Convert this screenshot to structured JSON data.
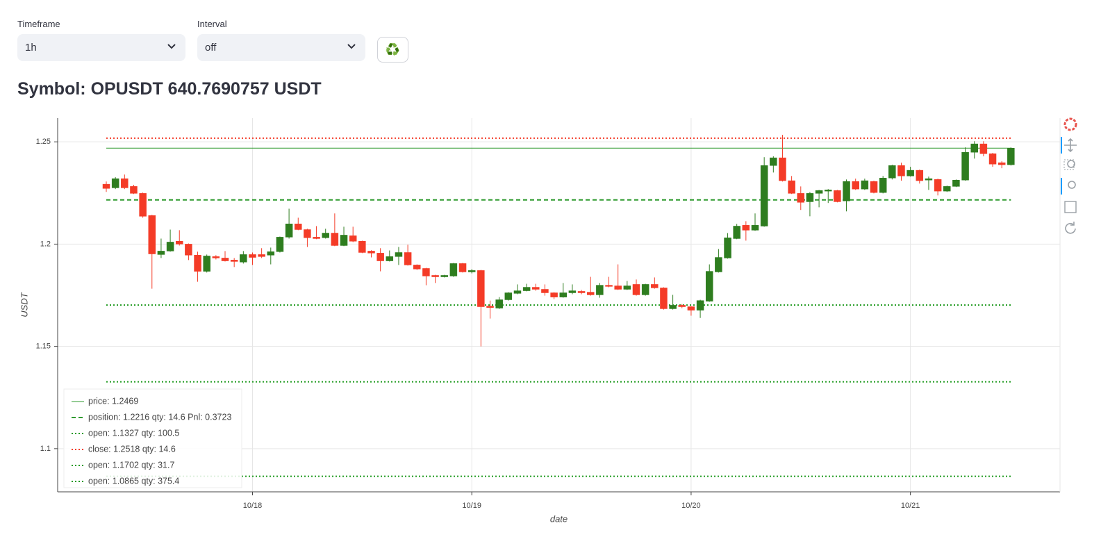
{
  "controls": {
    "timeframe": {
      "label": "Timeframe",
      "value": "1h"
    },
    "interval": {
      "label": "Interval",
      "value": "off"
    },
    "refresh_button": "♻️"
  },
  "heading": "Symbol: OPUSDT 640.7690757 USDT",
  "chart_data": {
    "type": "candlestick",
    "x_label": "date",
    "y_label": "USDT",
    "categories": [
      null,
      null,
      null,
      null,
      null,
      null,
      null,
      null,
      null,
      null,
      null,
      null,
      null,
      null,
      null,
      null,
      "10/18",
      null,
      null,
      null,
      null,
      null,
      null,
      null,
      null,
      null,
      null,
      null,
      null,
      null,
      null,
      null,
      null,
      null,
      null,
      null,
      null,
      null,
      null,
      null,
      "10/19",
      null,
      null,
      null,
      null,
      null,
      null,
      null,
      null,
      null,
      null,
      null,
      null,
      null,
      null,
      null,
      null,
      null,
      null,
      null,
      null,
      null,
      null,
      null,
      "10/20",
      null,
      null,
      null,
      null,
      null,
      null,
      null,
      null,
      null,
      null,
      null,
      null,
      null,
      null,
      null,
      null,
      null,
      null,
      null,
      null,
      null,
      null,
      null,
      "10/21",
      null,
      null,
      null,
      null,
      null,
      null,
      null,
      null,
      null,
      null,
      null
    ],
    "open": [
      1.2293,
      1.2275,
      1.232,
      1.2282,
      1.2248,
      1.214,
      1.1949,
      1.1966,
      1.2014,
      1.2,
      1.1946,
      1.1867,
      1.1939,
      1.1932,
      1.1922,
      1.1912,
      1.1949,
      1.1949,
      1.1946,
      1.1963,
      1.2034,
      1.2099,
      1.2071,
      1.2034,
      1.2031,
      1.2054,
      1.1993,
      1.2041,
      1.2014,
      1.1966,
      1.1956,
      1.1918,
      1.1939,
      1.1959,
      1.1898,
      1.1881,
      1.1847,
      1.184,
      1.1844,
      1.1905,
      1.1864,
      1.1871,
      1.1697,
      1.1687,
      1.1728,
      1.1759,
      1.1772,
      1.1789,
      1.1779,
      1.1762,
      1.1741,
      1.1762,
      1.1769,
      1.1765,
      1.1752,
      1.1799,
      1.1796,
      1.1779,
      1.1803,
      1.1752,
      1.1803,
      1.1786,
      1.1684,
      1.1701,
      1.1694,
      1.1677,
      1.1721,
      1.1864,
      1.1932,
      1.2027,
      1.2092,
      1.2068,
      1.2088,
      1.2384,
      1.2422,
      1.231,
      1.2248,
      1.2207,
      1.2248,
      1.2259,
      1.2262,
      1.2211,
      1.2306,
      1.2269,
      1.2306,
      1.2252,
      1.2323,
      1.2384,
      1.2333,
      1.2361,
      1.2313,
      1.2316,
      1.2259,
      1.2282,
      1.2313,
      1.2449,
      1.249,
      1.2442,
      1.2398,
      1.2388
    ],
    "high": [
      1.2306,
      1.2327,
      1.234,
      1.229,
      1.2252,
      1.2143,
      1.2027,
      1.2071,
      1.2068,
      1.2003,
      1.1963,
      1.1949,
      1.1946,
      1.1966,
      1.1932,
      1.1966,
      1.1959,
      1.198,
      1.1983,
      1.2037,
      1.2173,
      1.2129,
      1.2075,
      1.2088,
      1.2075,
      1.215,
      1.2085,
      1.2085,
      1.2017,
      1.197,
      1.198,
      1.1969,
      1.1986,
      1.1997,
      1.1901,
      1.1884,
      1.185,
      1.185,
      1.1908,
      1.1908,
      1.1878,
      1.1874,
      1.1724,
      1.1741,
      1.1765,
      1.1803,
      1.1806,
      1.1806,
      1.1803,
      1.1765,
      1.181,
      1.1803,
      1.1776,
      1.184,
      1.181,
      1.184,
      1.1901,
      1.182,
      1.1827,
      1.1806,
      1.1837,
      1.1789,
      1.1752,
      1.1707,
      1.1697,
      1.1728,
      1.1901,
      1.1976,
      1.2054,
      1.2099,
      1.2112,
      1.215,
      1.2425,
      1.2429,
      1.2534,
      1.2333,
      1.2282,
      1.2255,
      1.2265,
      1.2269,
      1.2265,
      1.2316,
      1.232,
      1.232,
      1.231,
      1.2333,
      1.2388,
      1.2398,
      1.2378,
      1.2364,
      1.233,
      1.232,
      1.2286,
      1.2316,
      1.2473,
      1.2503,
      1.2503,
      1.2446,
      1.2405,
      1.2473
    ],
    "low": [
      1.2255,
      1.2269,
      1.2269,
      1.2245,
      1.2129,
      1.1782,
      1.1932,
      1.1963,
      1.1993,
      1.1922,
      1.1816,
      1.1861,
      1.1925,
      1.1915,
      1.1888,
      1.1905,
      1.1898,
      1.1932,
      1.1901,
      1.1959,
      1.2027,
      1.2068,
      1.1986,
      1.2024,
      1.2027,
      1.199,
      1.199,
      1.201,
      1.1956,
      1.1935,
      1.1867,
      1.1915,
      1.1898,
      1.1895,
      1.1874,
      1.1799,
      1.181,
      1.1837,
      1.184,
      1.1861,
      1.1857,
      1.15,
      1.1636,
      1.1683,
      1.1724,
      1.1755,
      1.1769,
      1.1772,
      1.1748,
      1.1731,
      1.1738,
      1.1755,
      1.1755,
      1.1748,
      1.1738,
      1.1789,
      1.1776,
      1.1776,
      1.1748,
      1.1748,
      1.1782,
      1.168,
      1.168,
      1.1687,
      1.165,
      1.1639,
      1.1718,
      1.1861,
      1.1929,
      1.2024,
      1.2017,
      1.2065,
      1.2085,
      1.235,
      1.2306,
      1.2245,
      1.2167,
      1.2136,
      1.218,
      1.2201,
      1.2204,
      1.216,
      1.2265,
      1.2265,
      1.2248,
      1.2248,
      1.2316,
      1.231,
      1.233,
      1.2296,
      1.2265,
      1.2238,
      1.2255,
      1.2279,
      1.231,
      1.2418,
      1.2429,
      1.2378,
      1.2371,
      1.2384
    ],
    "close": [
      1.2272,
      1.232,
      1.2275,
      1.2248,
      1.2136,
      1.1952,
      1.1966,
      1.201,
      1.2,
      1.1946,
      1.1867,
      1.1942,
      1.1932,
      1.1918,
      1.1915,
      1.1949,
      1.1935,
      1.1939,
      1.1963,
      1.2034,
      1.2099,
      1.2071,
      1.2031,
      1.2027,
      1.2054,
      1.1993,
      1.2044,
      1.2014,
      1.1959,
      1.1956,
      1.1918,
      1.1939,
      1.1959,
      1.1898,
      1.1878,
      1.1844,
      1.184,
      1.1847,
      1.1905,
      1.1864,
      1.1871,
      1.1694,
      1.169,
      1.1728,
      1.1762,
      1.1772,
      1.1789,
      1.1779,
      1.1762,
      1.1741,
      1.1762,
      1.1772,
      1.1762,
      1.1752,
      1.1799,
      1.1793,
      1.1779,
      1.1796,
      1.1752,
      1.1803,
      1.1786,
      1.1684,
      1.1701,
      1.1694,
      1.1677,
      1.1724,
      1.1867,
      1.1935,
      1.2031,
      1.2088,
      1.2068,
      1.2092,
      1.2384,
      1.2422,
      1.231,
      1.2248,
      1.2204,
      1.2248,
      1.2262,
      1.2265,
      1.2207,
      1.2306,
      1.2269,
      1.231,
      1.2252,
      1.2323,
      1.2384,
      1.2333,
      1.2361,
      1.231,
      1.232,
      1.2259,
      1.2282,
      1.2313,
      1.2449,
      1.249,
      1.2442,
      1.2391,
      1.2388,
      1.2469
    ],
    "increasing_color": "#2e7d1f",
    "decreasing_color": "#f43b27",
    "levels": [
      {
        "name": "price: 1.2469",
        "value": 1.2469,
        "color": "#2e9a2e",
        "dash": "solid"
      },
      {
        "name": "position: 1.2216 qty: 14.6 Pnl: 0.3723",
        "value": 1.2216,
        "color": "#2e9a2e",
        "dash": "dash"
      },
      {
        "name": "open: 1.1327 qty: 100.5",
        "value": 1.1327,
        "color": "#1f9a1f",
        "dash": "dot"
      },
      {
        "name": "close: 1.2518 qty: 14.6",
        "value": 1.2518,
        "color": "#f43b27",
        "dash": "dot"
      },
      {
        "name": "open: 1.1702 qty: 31.7",
        "value": 1.1702,
        "color": "#1f9a1f",
        "dash": "dot"
      },
      {
        "name": "open: 1.0865 qty: 375.4",
        "value": 1.0865,
        "color": "#1f9a1f",
        "dash": "dot"
      }
    ],
    "ylim": [
      1.0789,
      1.2616
    ],
    "yticks": [
      1.1,
      1.15,
      1.2,
      1.25
    ],
    "grid": true,
    "legend_position": "lower left"
  }
}
